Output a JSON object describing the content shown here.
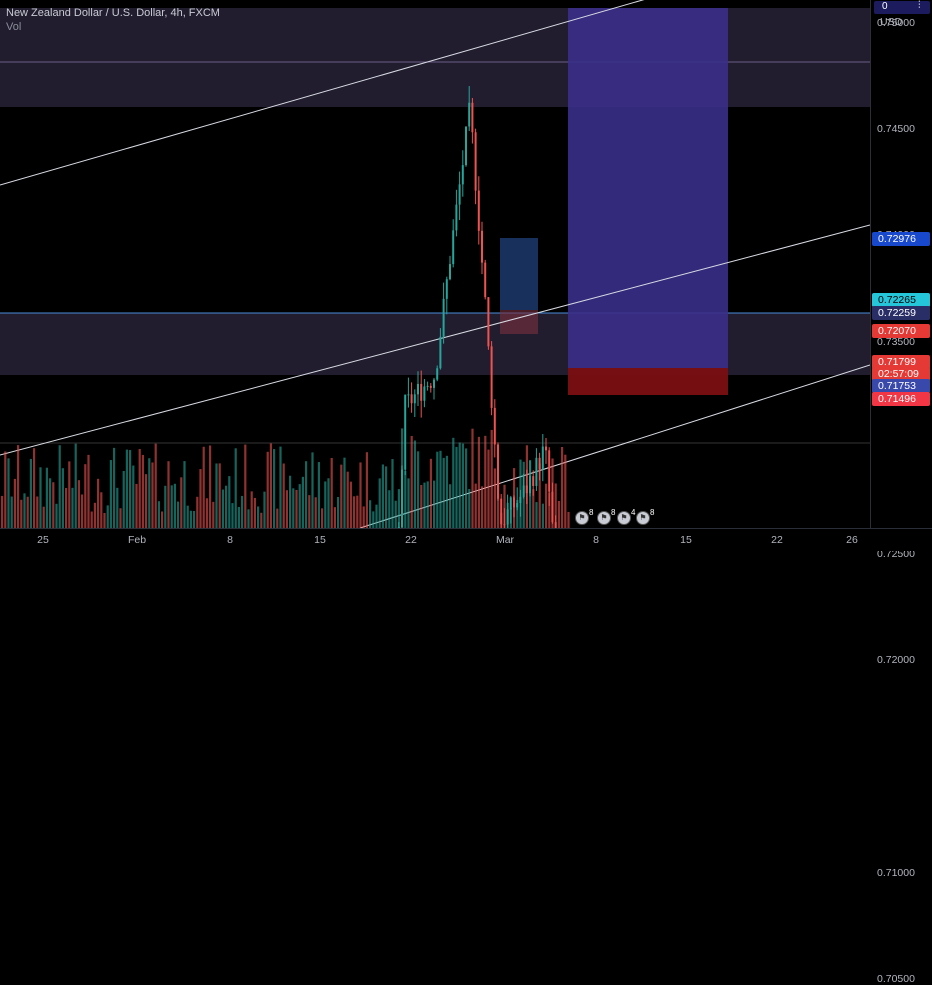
{
  "header": {
    "symbol_line": "New Zealand Dollar / U.S. Dollar, 4h, FXCM",
    "indicator": "Vol"
  },
  "price_axis": {
    "currency": "USD",
    "top_value": "0",
    "ticks": [
      "0.75000",
      "0.74500",
      "0.74000",
      "0.73500",
      "0.72500",
      "0.72000",
      "0.71000",
      "0.70500"
    ],
    "badges": [
      {
        "label": "0.72976",
        "color": "#1848cc"
      },
      {
        "label": "0.72265",
        "color": "#26c6da"
      },
      {
        "label": "0.72259",
        "color": "#2a2e66"
      },
      {
        "label": "0.72070",
        "color": "#e53935"
      },
      {
        "label": "0.71799",
        "color": "#e53935"
      },
      {
        "label": "02:57:09",
        "color": "#e53935"
      },
      {
        "label": "0.71753",
        "color": "#3949ab"
      },
      {
        "label": "0.71496",
        "color": "#f23645"
      }
    ]
  },
  "time_axis": {
    "labels": [
      "25",
      "Feb",
      "8",
      "15",
      "22",
      "Mar",
      "8",
      "15",
      "22",
      "26"
    ]
  },
  "events": [
    {
      "icon": "flag-icon",
      "count": "8"
    },
    {
      "icon": "flag-icon",
      "count": "8"
    },
    {
      "icon": "flag-icon",
      "count": "4"
    },
    {
      "icon": "flag-icon",
      "count": "8"
    }
  ],
  "colors": {
    "up": "#26a69a",
    "down": "#ef5350",
    "channel": "#d8dbe3",
    "long_target": "#3a2f8a",
    "long_stop": "#7a0f12",
    "zone": "#3d3456"
  }
}
